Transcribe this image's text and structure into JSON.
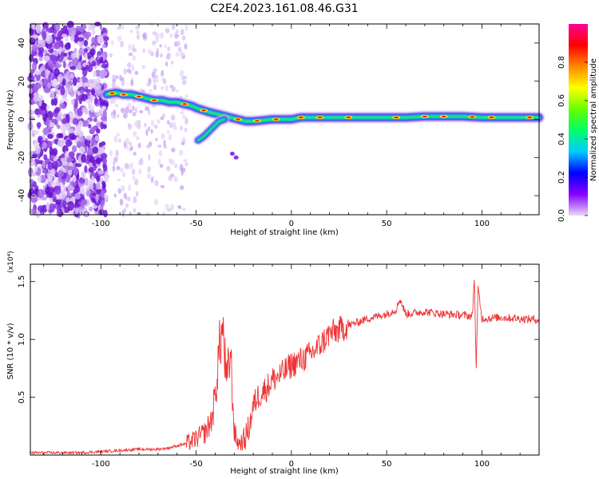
{
  "title": "C2E4.2023.161.08.46.G31",
  "chart_data": [
    {
      "type": "heatmap",
      "xlabel": "Height of straight line (km)",
      "ylabel": "Frequency (Hz)",
      "xlim": [
        -137,
        130
      ],
      "ylim": [
        -50,
        50
      ],
      "xticks": [
        -100,
        -50,
        0,
        50,
        100
      ],
      "yticks": [
        -40,
        -20,
        0,
        20,
        40
      ],
      "trace": {
        "x": [
          -97,
          -92,
          -88,
          -84,
          -80,
          -76,
          -72,
          -68,
          -64,
          -60,
          -56,
          -52,
          -50,
          -47,
          -44,
          -40,
          -36,
          -32,
          -28,
          -24,
          -20,
          -15,
          -10,
          -5,
          0,
          5,
          10,
          20,
          30,
          40,
          50,
          60,
          70,
          80,
          90,
          100,
          110,
          120,
          130
        ],
        "y": [
          13,
          14,
          13,
          13,
          12,
          11,
          10,
          10,
          9,
          9,
          8,
          7,
          6,
          5,
          4,
          3,
          2,
          1,
          0,
          -1,
          -1,
          -0.5,
          0,
          0,
          0,
          1,
          1,
          1,
          1,
          1,
          1,
          1,
          1.5,
          1.5,
          1.5,
          1,
          1,
          1,
          1
        ]
      },
      "branch": {
        "x": [
          -49,
          -46,
          -43,
          -40,
          -38,
          -35
        ],
        "y": [
          -11,
          -9,
          -6,
          -3,
          -1,
          0
        ]
      },
      "colorbar": {
        "label": "Normalized spectral amplitude",
        "ticks": [
          0.0,
          0.2,
          0.4,
          0.6,
          0.8
        ],
        "range": [
          0,
          1
        ],
        "colors": [
          "#e8d8f8",
          "#8800ff",
          "#0000ff",
          "#00ccff",
          "#00ff66",
          "#66ff00",
          "#ffff00",
          "#ff8800",
          "#ff0000",
          "#ff0099"
        ]
      }
    },
    {
      "type": "line",
      "xlabel": "Height of straight line (km)",
      "ylabel": "SNR (10 * v/v)",
      "y_multiplier": "(x10⁴)",
      "xlim": [
        -137,
        130
      ],
      "ylim": [
        0,
        1.65
      ],
      "xticks": [
        -100,
        -50,
        0,
        50,
        100
      ],
      "yticks": [
        0.5,
        1.0,
        1.5
      ],
      "ytick_labels": [
        "0.5",
        "1.0",
        "1.5"
      ],
      "color": "#ee3333",
      "series": [
        {
          "x": [
            -137,
            -110,
            -100,
            -90,
            -80,
            -70,
            -65,
            -60,
            -55,
            -50,
            -45,
            -42,
            -40,
            -38,
            -36,
            -34,
            -32,
            -30,
            -28,
            -25,
            -22,
            -20,
            -18,
            -15,
            -12,
            -10,
            -5,
            0,
            5,
            10,
            15,
            20,
            25,
            30,
            40,
            50,
            55,
            57,
            60,
            70,
            80,
            90,
            95,
            96,
            97,
            98,
            100,
            110,
            120,
            130
          ],
          "y": [
            0.02,
            0.02,
            0.03,
            0.04,
            0.05,
            0.05,
            0.06,
            0.08,
            0.1,
            0.14,
            0.2,
            0.3,
            0.5,
            0.9,
            1.1,
            0.6,
            0.9,
            0.2,
            0.1,
            0.12,
            0.25,
            0.42,
            0.5,
            0.55,
            0.6,
            0.65,
            0.7,
            0.78,
            0.82,
            0.87,
            0.95,
            1.05,
            1.08,
            1.12,
            1.18,
            1.22,
            1.26,
            1.35,
            1.22,
            1.24,
            1.22,
            1.21,
            1.2,
            1.55,
            0.75,
            1.45,
            1.18,
            1.19,
            1.18,
            1.17
          ]
        }
      ]
    }
  ]
}
